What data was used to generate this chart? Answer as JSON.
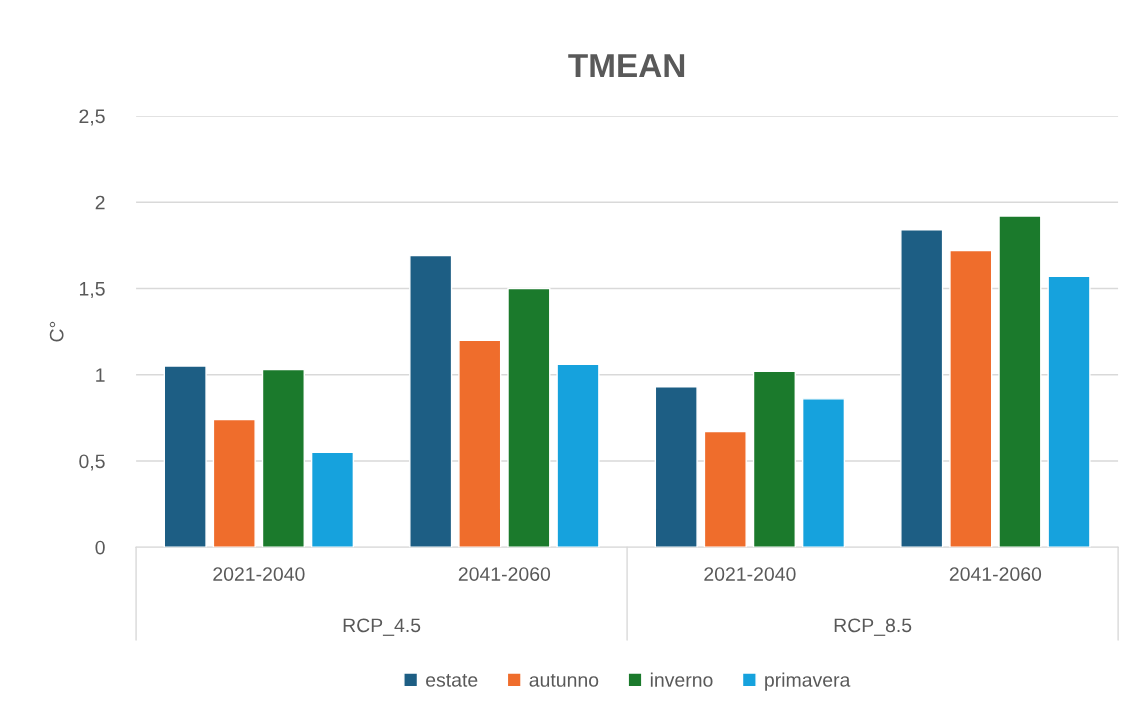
{
  "chart_data": {
    "type": "bar",
    "title": "TMEAN",
    "ylabel": "C°",
    "categories": [
      "2021-2040",
      "2041-2060",
      "2021-2040",
      "2041-2060"
    ],
    "annotations": [
      "RCP_4.5",
      "RCP_8.5"
    ],
    "series": [
      {
        "name": "estate",
        "color": "#1d5e84",
        "values": [
          1.05,
          1.69,
          0.93,
          1.84
        ]
      },
      {
        "name": "autunno",
        "color": "#ef6d2c",
        "values": [
          0.74,
          1.2,
          0.67,
          1.72
        ]
      },
      {
        "name": "inverno",
        "color": "#1b7a2c",
        "values": [
          1.03,
          1.5,
          1.02,
          1.92
        ]
      },
      {
        "name": "primavera",
        "color": "#16a2dd",
        "values": [
          0.55,
          1.06,
          0.86,
          1.57
        ]
      }
    ],
    "ylim": [
      0,
      2.5
    ],
    "yticks": [
      0,
      {
        "value": 0.5,
        "label": "0,5"
      },
      1,
      {
        "value": 1.5,
        "label": "1,5"
      },
      2,
      {
        "value": 2.5,
        "label": "2,5"
      }
    ],
    "grid": "y",
    "legend": "bottom"
  }
}
